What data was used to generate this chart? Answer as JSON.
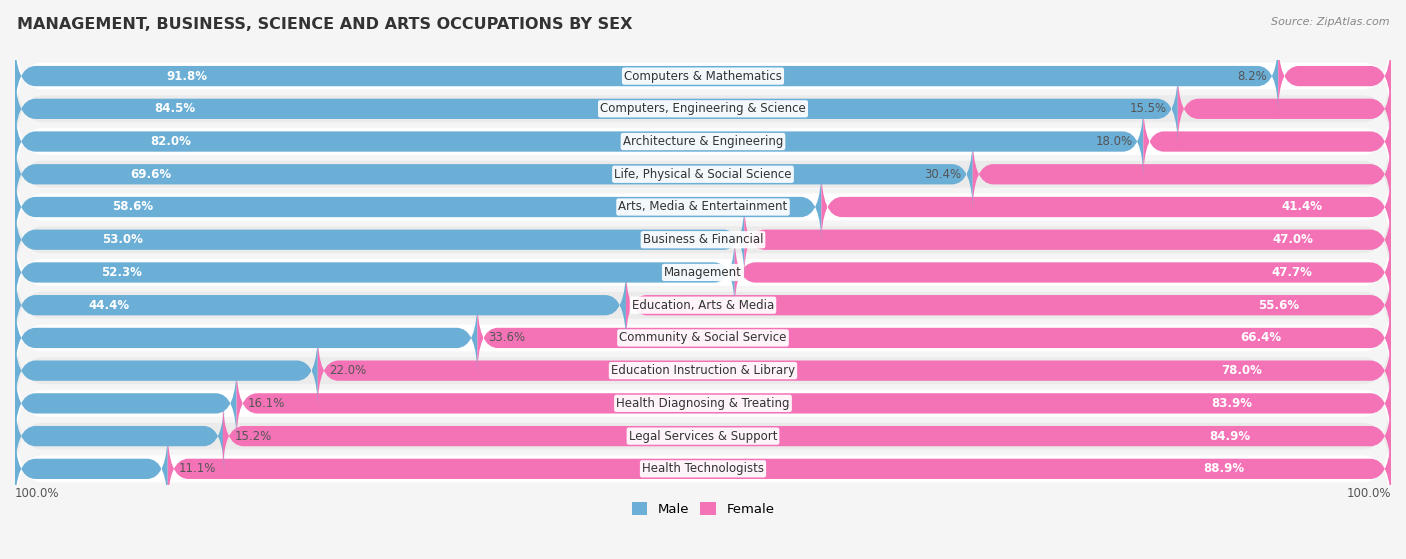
{
  "title": "MANAGEMENT, BUSINESS, SCIENCE AND ARTS OCCUPATIONS BY SEX",
  "source": "Source: ZipAtlas.com",
  "categories": [
    "Computers & Mathematics",
    "Computers, Engineering & Science",
    "Architecture & Engineering",
    "Life, Physical & Social Science",
    "Arts, Media & Entertainment",
    "Business & Financial",
    "Management",
    "Education, Arts & Media",
    "Community & Social Service",
    "Education Instruction & Library",
    "Health Diagnosing & Treating",
    "Legal Services & Support",
    "Health Technologists"
  ],
  "male_pct": [
    91.8,
    84.5,
    82.0,
    69.6,
    58.6,
    53.0,
    52.3,
    44.4,
    33.6,
    22.0,
    16.1,
    15.2,
    11.1
  ],
  "female_pct": [
    8.2,
    15.5,
    18.0,
    30.4,
    41.4,
    47.0,
    47.7,
    55.6,
    66.4,
    78.0,
    83.9,
    84.9,
    88.9
  ],
  "male_color": "#6baed6",
  "female_color": "#f472b6",
  "background_color": "#f5f5f5",
  "row_light": "#ffffff",
  "row_dark": "#ebebeb",
  "title_fontsize": 11.5,
  "label_fontsize": 8.5,
  "pct_fontsize": 8.5,
  "tick_fontsize": 8.5,
  "legend_fontsize": 9.5,
  "bar_height": 0.62,
  "xlim": 100,
  "white_threshold": 35
}
